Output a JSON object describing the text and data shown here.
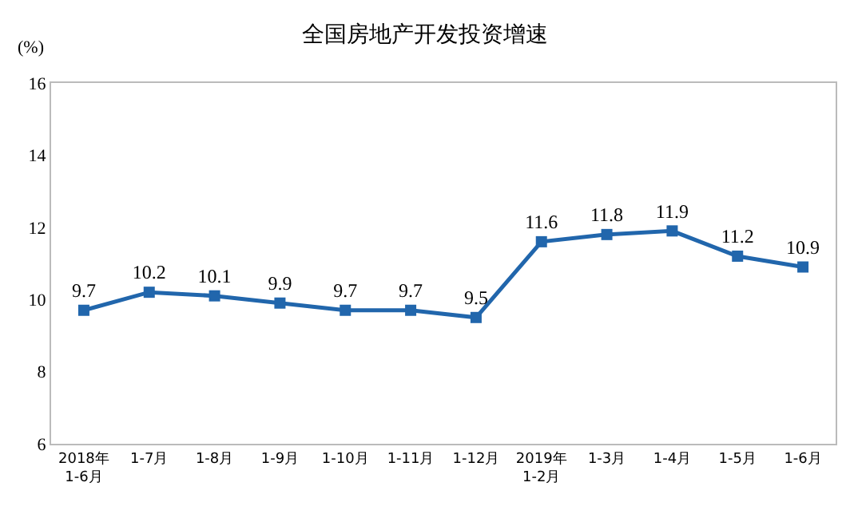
{
  "chart_data": {
    "type": "line",
    "title": "全国房地产开发投资增速",
    "ylabel": "(%)",
    "categories": [
      "2018年\n1-6月",
      "1-7月",
      "1-8月",
      "1-9月",
      "1-10月",
      "1-11月",
      "1-12月",
      "2019年\n1-2月",
      "1-3月",
      "1-4月",
      "1-5月",
      "1-6月"
    ],
    "series": [
      {
        "color": "#2166ac",
        "values": [
          9.7,
          10.2,
          10.1,
          9.9,
          9.7,
          9.7,
          9.5,
          11.6,
          11.8,
          11.9,
          11.2,
          10.9
        ]
      }
    ],
    "ylim": [
      6,
      16
    ],
    "yticks": [
      6,
      8,
      10,
      12,
      14,
      16
    ],
    "legend": false,
    "marker": "square",
    "line_style": "solid",
    "data_labels": true
  }
}
